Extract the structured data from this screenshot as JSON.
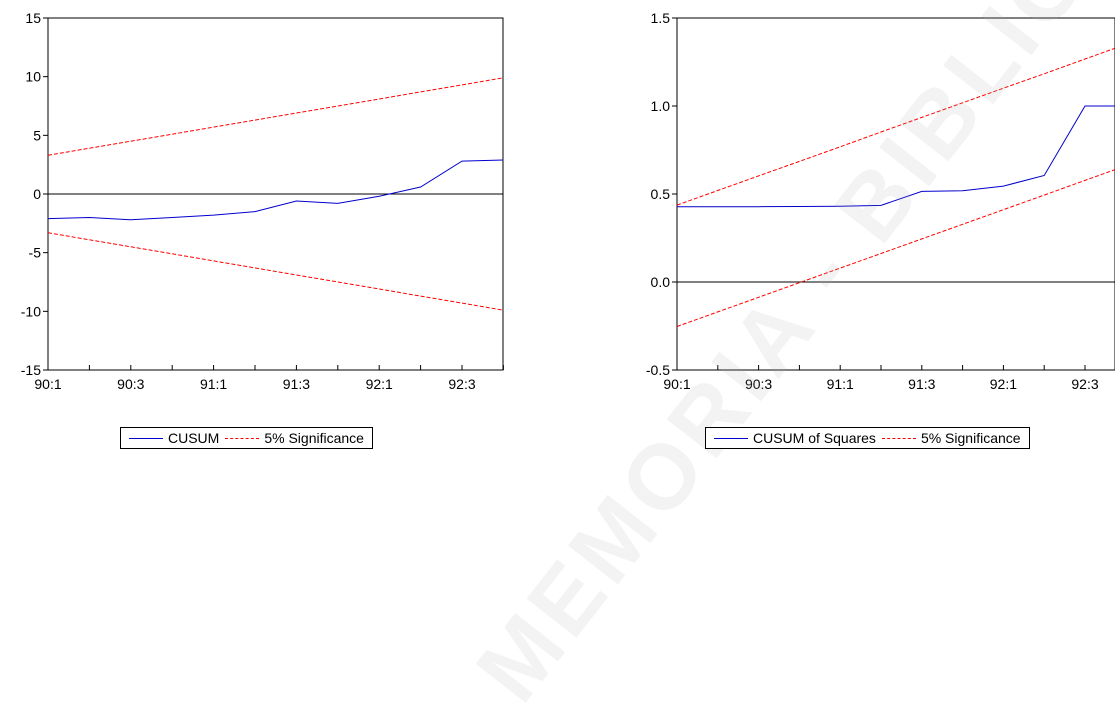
{
  "watermark": "MEMORIA - BIBLIOTHE",
  "colors": {
    "cusum": "#0000cc",
    "significance": "#ff0000",
    "axis": "#000000"
  },
  "chart_data": [
    {
      "type": "line",
      "x": [
        "90:1",
        "90:2",
        "90:3",
        "90:4",
        "91:1",
        "91:2",
        "91:3",
        "91:4",
        "92:1",
        "92:2",
        "92:3",
        "92:4"
      ],
      "x_tick_labels": [
        "90:1",
        "90:3",
        "91:1",
        "91:3",
        "92:1",
        "92:3"
      ],
      "y_ticks": [
        -15,
        -10,
        -5,
        0,
        5,
        10,
        15
      ],
      "y_tick_labels": [
        "-15",
        "-10",
        "-5",
        "0",
        "5",
        "10",
        "15"
      ],
      "ylim": [
        -15,
        15
      ],
      "zero_line": true,
      "legend": "bottom-center",
      "series": [
        {
          "name": "CUSUM",
          "style": "solid",
          "color": "#0000cc",
          "values": [
            -2.1,
            -2.0,
            -2.2,
            -2.0,
            -1.8,
            -1.5,
            -0.6,
            -0.8,
            -0.2,
            0.6,
            2.8,
            2.9
          ]
        },
        {
          "name": "5% Significance",
          "style": "dashed",
          "color": "#ff0000",
          "values": [
            3.3,
            3.9,
            4.5,
            5.1,
            5.7,
            6.3,
            6.9,
            7.5,
            8.1,
            8.7,
            9.3,
            9.9
          ]
        },
        {
          "name": "",
          "style": "dashed",
          "color": "#ff0000",
          "values": [
            -3.3,
            -3.9,
            -4.5,
            -5.1,
            -5.7,
            -6.3,
            -6.9,
            -7.5,
            -8.1,
            -8.7,
            -9.3,
            -9.9
          ]
        }
      ]
    },
    {
      "type": "line",
      "x": [
        "90:1",
        "90:2",
        "90:3",
        "90:4",
        "91:1",
        "91:2",
        "91:3",
        "91:4",
        "92:1",
        "92:2",
        "92:3",
        "92:4"
      ],
      "x_tick_labels": [
        "90:1",
        "90:3",
        "91:1",
        "91:3",
        "92:1",
        "92:3"
      ],
      "y_ticks": [
        -0.5,
        0.0,
        0.5,
        1.0,
        1.5
      ],
      "y_tick_labels": [
        "-0.5",
        "0.0",
        "0.5",
        "1.0",
        "1.5"
      ],
      "ylim": [
        -0.5,
        1.5
      ],
      "zero_line": true,
      "legend": "bottom-center",
      "series": [
        {
          "name": "CUSUM of Squares",
          "style": "solid",
          "color": "#0000cc",
          "values": [
            0.428,
            0.428,
            0.428,
            0.429,
            0.43,
            0.435,
            0.515,
            0.518,
            0.545,
            0.605,
            1.0,
            1.0
          ]
        },
        {
          "name": "5% Significance",
          "style": "dashed",
          "color": "#ff0000",
          "values": [
            0.437,
            0.52,
            0.603,
            0.685,
            0.768,
            0.852,
            0.935,
            1.018,
            1.101,
            1.183,
            1.267,
            1.35
          ]
        },
        {
          "name": "",
          "style": "dashed",
          "color": "#ff0000",
          "values": [
            -0.253,
            -0.17,
            -0.087,
            -0.004,
            0.079,
            0.162,
            0.245,
            0.328,
            0.411,
            0.494,
            0.577,
            0.66
          ]
        }
      ]
    }
  ]
}
